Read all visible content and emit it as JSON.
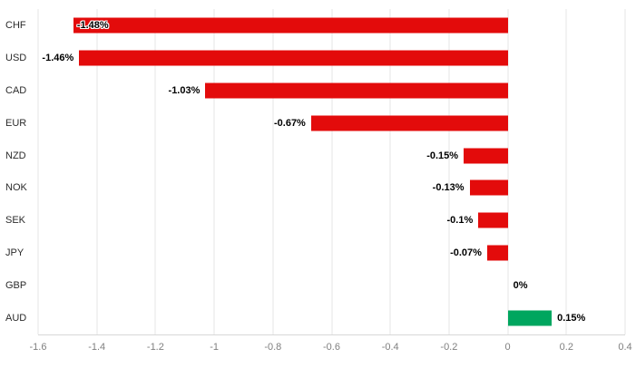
{
  "chart_data": {
    "type": "bar",
    "orientation": "horizontal",
    "title": "",
    "xlabel": "",
    "ylabel": "",
    "categories": [
      "CHF",
      "USD",
      "CAD",
      "EUR",
      "NZD",
      "NOK",
      "SEK",
      "JPY",
      "GBP",
      "AUD"
    ],
    "values": [
      -1.48,
      -1.46,
      -1.03,
      -0.67,
      -0.15,
      -0.13,
      -0.1,
      -0.07,
      0,
      0.15
    ],
    "labels": [
      "-1.48%",
      "-1.46%",
      "-1.03%",
      "-0.67%",
      "-0.15%",
      "-0.13%",
      "-0.1%",
      "-0.07%",
      "0%",
      "0.15%"
    ],
    "label_inside": [
      true,
      false,
      false,
      false,
      false,
      false,
      false,
      false,
      false,
      false
    ],
    "xlim": [
      -1.6,
      0.4
    ],
    "ticks": [
      -1.6,
      -1.4,
      -1.2,
      -1,
      -0.8,
      -0.6,
      -0.4,
      -0.2,
      0,
      0.2,
      0.4
    ],
    "tick_labels": [
      "-1.6",
      "-1.4",
      "-1.2",
      "-1",
      "-0.8",
      "-0.6",
      "-0.4",
      "-0.2",
      "0",
      "0.2",
      "0.4"
    ],
    "legend": "off",
    "grid": "vertical",
    "colors": {
      "negative": "#e30b0b",
      "positive": "#00a65f",
      "grid": "#e6e6e6",
      "axis": "#d8d8d8",
      "tick_text": "#7f7f7f",
      "category_text": "#2b2b2b",
      "value_text": "#000000"
    }
  }
}
